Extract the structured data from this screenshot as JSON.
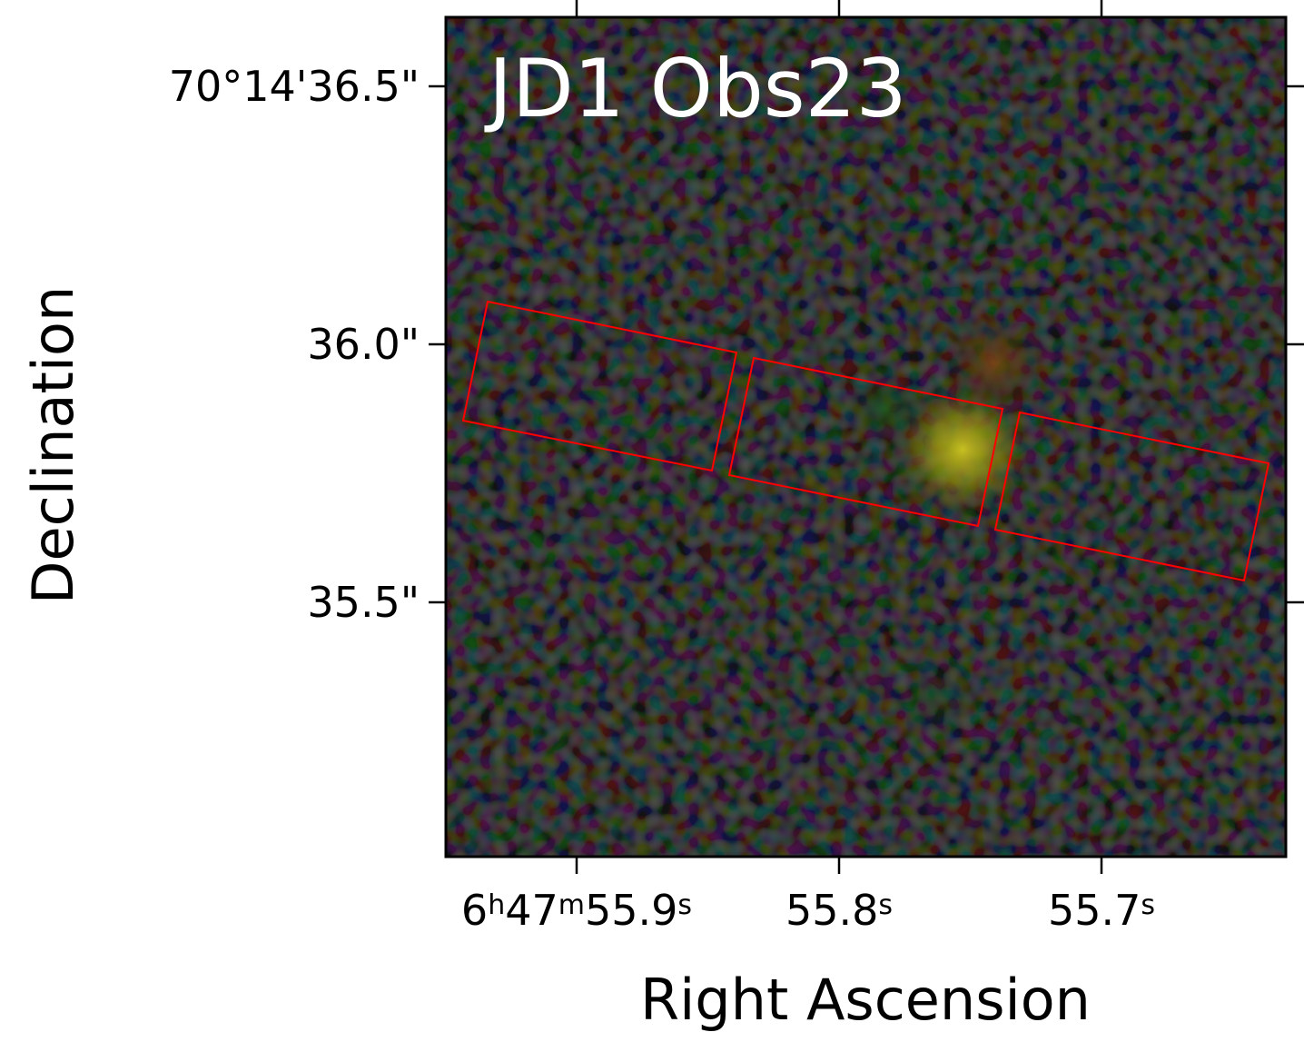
{
  "figure": {
    "title": "JD1 Obs23",
    "x_label": "Right Ascension",
    "y_label": "Declination",
    "x_ticks": [
      [
        "6",
        "h",
        "47",
        "m",
        "55.9",
        "s"
      ],
      [
        "55.8",
        "s"
      ],
      [
        "55.7",
        "s"
      ]
    ],
    "y_ticks": [
      "70°14'36.5\"",
      "36.0\"",
      "35.5\""
    ]
  }
}
